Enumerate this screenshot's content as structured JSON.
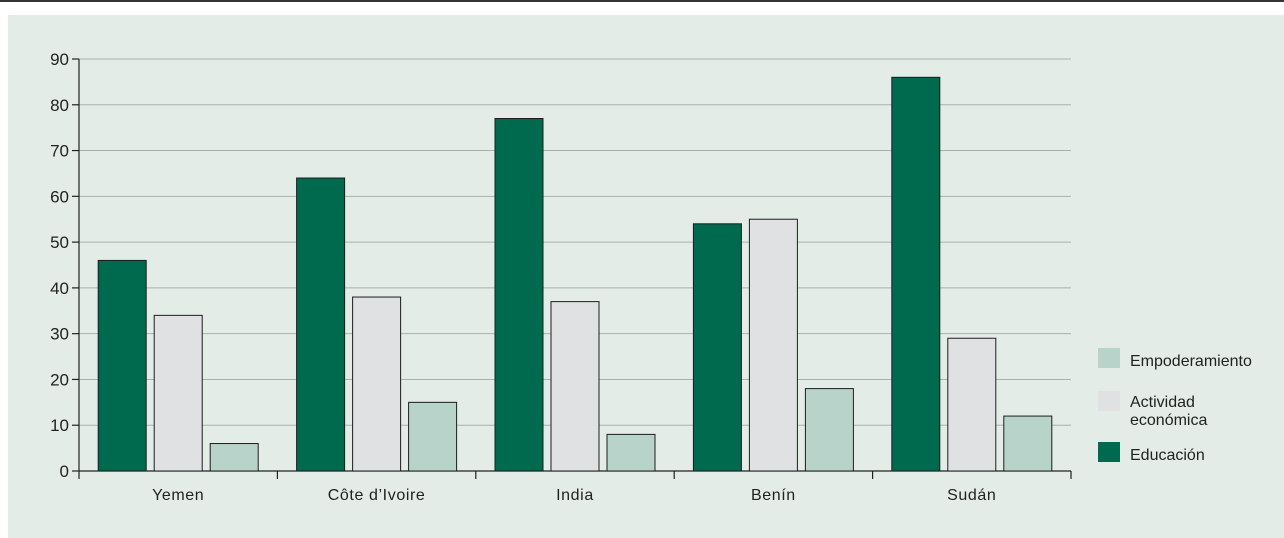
{
  "chart_data": {
    "type": "bar",
    "categories": [
      "Yemen",
      "Côte d’Ivoire",
      "India",
      "Benín",
      "Sudán"
    ],
    "series": [
      {
        "name": "Educación",
        "color": "#006a4e",
        "values": [
          46,
          64,
          77,
          54,
          86
        ]
      },
      {
        "name": "Actividad económica",
        "color": "#e0e1e3",
        "values": [
          34,
          38,
          37,
          55,
          29
        ]
      },
      {
        "name": "Empoderamiento",
        "color": "#b8d3ca",
        "values": [
          6,
          15,
          8,
          18,
          12
        ]
      }
    ],
    "legend_order": [
      "Empoderamiento",
      "Actividad económica",
      "Educación"
    ],
    "legend_lines": {
      "Empoderamiento": [
        "Empoderamiento"
      ],
      "Actividad económica": [
        "Actividad",
        "económica"
      ],
      "Educación": [
        "Educación"
      ]
    },
    "ylim": [
      0,
      90
    ],
    "yticks": [
      0,
      10,
      20,
      30,
      40,
      50,
      60,
      70,
      80,
      90
    ],
    "grid": true,
    "legend_position": "right",
    "title": "",
    "xlabel": "",
    "ylabel": ""
  }
}
